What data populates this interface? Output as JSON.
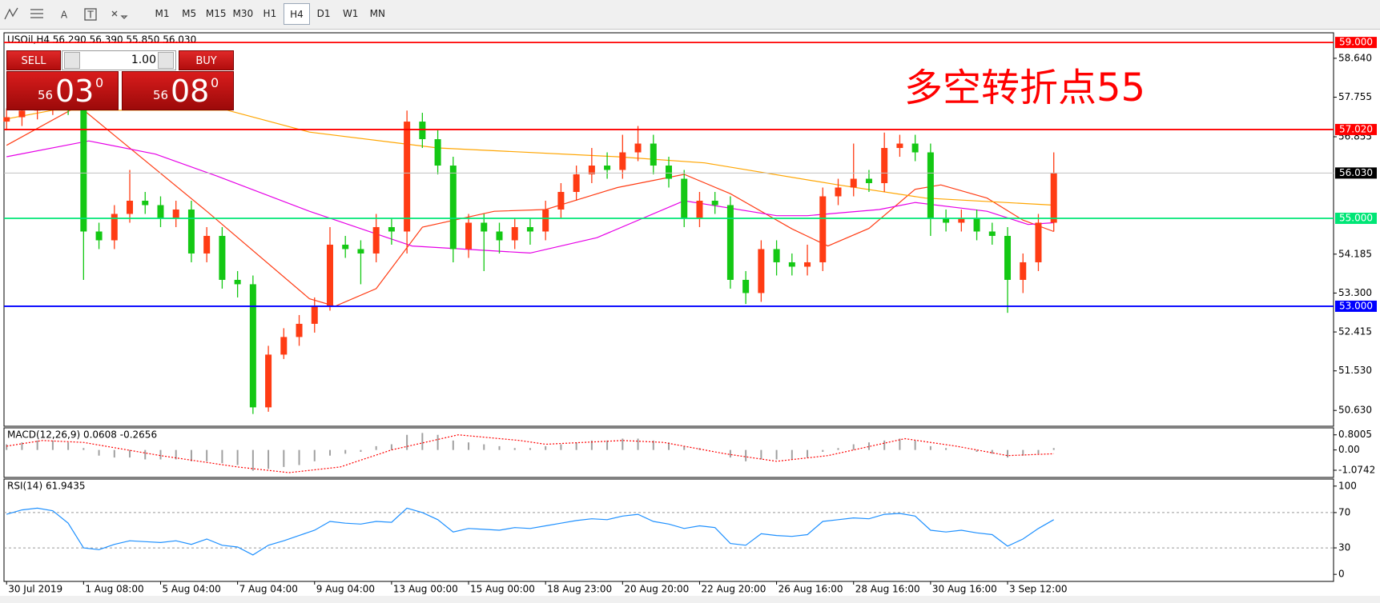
{
  "toolbar": {
    "text_tool": "A",
    "label_tool": "T",
    "timeframes": [
      "M1",
      "M5",
      "M15",
      "M30",
      "H1",
      "H4",
      "D1",
      "W1",
      "MN"
    ],
    "active_index": 5
  },
  "trade_panel": {
    "sell": "SELL",
    "buy": "BUY",
    "lot": "1.00",
    "bid": {
      "small": "56",
      "main": "03",
      "sup": "0"
    },
    "ask": {
      "small": "56",
      "main": "08",
      "sup": "0"
    }
  },
  "chart_data": [
    {
      "type": "candlestick",
      "header": "USOil,H4  56.290 56.390 55.850 56.030",
      "annotation": "多空转折点55",
      "up_color": "#ff3c14",
      "down_color": "#14c814",
      "xlim": [
        -0.5,
        258.5
      ],
      "ylim": [
        50.27,
        59.22
      ],
      "yticks": [
        {
          "value": 58.64,
          "label": "58.640"
        },
        {
          "value": 57.755,
          "label": "57.755"
        },
        {
          "value": 56.855,
          "label": "56.855"
        },
        {
          "value": 54.185,
          "label": "54.185"
        },
        {
          "value": 53.3,
          "label": "53.300"
        },
        {
          "value": 52.415,
          "label": "52.415"
        },
        {
          "value": 51.53,
          "label": "51.530"
        },
        {
          "value": 50.63,
          "label": "50.630"
        }
      ],
      "x": [
        0,
        3,
        6,
        9,
        12,
        15,
        18,
        21,
        24,
        27,
        30,
        33,
        36,
        39,
        42,
        45,
        48,
        51,
        54,
        57,
        60,
        63,
        66,
        69,
        72,
        75,
        78,
        81,
        84,
        87,
        90,
        93,
        96,
        99,
        102,
        105,
        108,
        111,
        114,
        117,
        120,
        123,
        126,
        129,
        132,
        135,
        138,
        141,
        144,
        147,
        150,
        153,
        156,
        159,
        162,
        165,
        168,
        171,
        174,
        177,
        180,
        183,
        186,
        189,
        192,
        195,
        198,
        201,
        204
      ],
      "open": [
        57.2,
        57.3,
        57.45,
        57.55,
        57.6,
        57.55,
        54.7,
        54.5,
        55.1,
        55.4,
        55.3,
        55.0,
        55.2,
        54.2,
        54.6,
        53.6,
        53.5,
        50.7,
        51.9,
        52.3,
        52.6,
        53.0,
        54.4,
        54.3,
        54.2,
        54.8,
        54.7,
        57.2,
        56.8,
        56.2,
        54.3,
        54.9,
        54.7,
        54.5,
        54.8,
        54.7,
        55.2,
        55.6,
        56.0,
        56.2,
        56.1,
        56.5,
        56.7,
        56.2,
        55.9,
        55.0,
        55.4,
        55.3,
        53.6,
        53.3,
        54.3,
        54.0,
        53.9,
        54.0,
        55.5,
        55.7,
        55.9,
        55.8,
        56.6,
        56.7,
        56.5,
        55.0,
        54.9,
        55.0,
        54.7,
        54.6,
        53.6,
        54.0,
        54.9
      ],
      "high": [
        57.5,
        57.65,
        57.75,
        57.8,
        57.8,
        57.75,
        54.9,
        55.3,
        56.1,
        55.6,
        55.5,
        55.4,
        55.4,
        54.8,
        54.8,
        53.8,
        53.7,
        52.1,
        52.5,
        52.8,
        53.2,
        54.8,
        54.6,
        54.5,
        55.1,
        55.0,
        57.45,
        57.4,
        57.0,
        56.4,
        55.1,
        55.1,
        54.9,
        55.0,
        55.0,
        55.4,
        55.8,
        56.2,
        56.6,
        56.5,
        56.9,
        57.1,
        56.9,
        56.4,
        56.1,
        55.6,
        55.6,
        55.5,
        53.8,
        54.5,
        54.5,
        54.2,
        54.4,
        55.7,
        55.9,
        56.7,
        56.1,
        56.95,
        56.9,
        56.9,
        56.7,
        55.2,
        55.2,
        55.2,
        54.9,
        54.8,
        54.2,
        55.1,
        56.5
      ],
      "low": [
        57.0,
        57.1,
        57.25,
        57.35,
        57.35,
        53.6,
        54.3,
        54.3,
        54.9,
        55.1,
        54.8,
        54.8,
        54.0,
        54.0,
        53.4,
        53.2,
        50.55,
        50.6,
        51.8,
        52.1,
        52.4,
        52.9,
        54.1,
        53.5,
        54.0,
        54.4,
        54.2,
        56.6,
        56.0,
        54.0,
        54.1,
        53.8,
        54.2,
        54.3,
        54.4,
        54.5,
        55.0,
        55.4,
        55.8,
        55.9,
        55.9,
        56.3,
        56.0,
        55.7,
        54.8,
        54.8,
        55.1,
        53.4,
        53.05,
        53.1,
        53.7,
        53.7,
        53.7,
        53.8,
        55.3,
        55.5,
        55.6,
        55.6,
        56.4,
        56.3,
        54.6,
        54.7,
        54.7,
        54.5,
        54.4,
        52.85,
        53.3,
        53.8,
        54.7
      ],
      "close": [
        57.3,
        57.45,
        57.55,
        57.6,
        57.55,
        54.7,
        54.5,
        55.1,
        55.4,
        55.3,
        55.0,
        55.2,
        54.2,
        54.6,
        53.6,
        53.5,
        50.7,
        51.9,
        52.3,
        52.6,
        53.0,
        54.4,
        54.3,
        54.2,
        54.8,
        54.7,
        57.2,
        56.8,
        56.2,
        54.3,
        54.9,
        54.7,
        54.5,
        54.8,
        54.7,
        55.2,
        55.6,
        56.0,
        56.2,
        56.1,
        56.5,
        56.7,
        56.2,
        55.9,
        55.0,
        55.4,
        55.3,
        53.6,
        53.3,
        54.3,
        54.0,
        53.9,
        54.0,
        55.5,
        55.7,
        55.9,
        55.8,
        56.6,
        56.7,
        56.5,
        55.0,
        54.9,
        55.0,
        54.7,
        54.6,
        53.6,
        54.0,
        54.9,
        56.03
      ],
      "moving_averages": [
        {
          "color": "#ff3c14",
          "x": [
            0,
            14,
            39,
            59,
            64,
            72,
            81,
            95,
            105,
            119,
            132,
            141,
            153,
            160,
            168,
            177,
            182,
            191,
            198,
            204
          ],
          "values": [
            56.66,
            57.56,
            55.16,
            53.17,
            53.0,
            53.4,
            54.8,
            55.16,
            55.2,
            55.7,
            56.0,
            55.56,
            54.76,
            54.37,
            54.77,
            55.66,
            55.76,
            55.46,
            54.96,
            54.7
          ]
        },
        {
          "color": "#e600e6",
          "x": [
            0,
            16,
            29,
            41,
            59,
            79,
            102,
            115,
            132,
            150,
            156,
            170,
            177,
            191,
            199,
            204
          ],
          "values": [
            56.4,
            56.76,
            56.46,
            55.96,
            55.16,
            54.37,
            54.21,
            54.56,
            55.4,
            55.06,
            55.06,
            55.2,
            55.36,
            55.16,
            54.86,
            54.9
          ]
        },
        {
          "color": "#ffa500",
          "x": [
            0,
            9,
            43,
            59,
            84,
            119,
            136,
            162,
            179,
            204
          ],
          "values": [
            57.26,
            57.46,
            57.46,
            56.96,
            56.6,
            56.4,
            56.26,
            55.76,
            55.46,
            55.3
          ]
        }
      ],
      "levels": [
        {
          "value": 59.0,
          "label": "59.000",
          "color": "#ff0000"
        },
        {
          "value": 57.02,
          "label": "57.020",
          "color": "#ff0000"
        },
        {
          "value": 55.0,
          "label": "55.000",
          "color": "#00e676"
        },
        {
          "value": 53.0,
          "label": "53.000",
          "color": "#0000ff"
        }
      ],
      "current": {
        "value": 56.03,
        "label": "56.030"
      }
    },
    {
      "type": "macd",
      "header": "MACD(12,26,9) 0.0608 -0.2656",
      "xlim": [
        -0.5,
        258.5
      ],
      "ylim": [
        -1.455,
        1.17
      ],
      "yticks": [
        0.8005,
        {
          "value": 0,
          "label": "0.00"
        },
        -1.0742
      ],
      "histogram_color": "#a0a0a0",
      "signal_color": "#ff0000",
      "histogram": [
        0.3,
        0.4,
        0.5,
        0.5,
        0.4,
        0.1,
        -0.3,
        -0.4,
        -0.4,
        -0.5,
        -0.5,
        -0.5,
        -0.6,
        -0.6,
        -0.7,
        -0.8,
        -1.1,
        -1.0,
        -0.9,
        -0.8,
        -0.6,
        -0.3,
        -0.2,
        -0.1,
        0.2,
        0.3,
        0.8,
        0.9,
        0.8,
        0.5,
        0.4,
        0.3,
        0.2,
        0.1,
        0.1,
        0.2,
        0.3,
        0.4,
        0.5,
        0.5,
        0.6,
        0.6,
        0.5,
        0.4,
        0.2,
        0.1,
        0.0,
        -0.4,
        -0.6,
        -0.5,
        -0.5,
        -0.5,
        -0.4,
        -0.1,
        0.1,
        0.3,
        0.4,
        0.5,
        0.6,
        0.5,
        0.2,
        0.1,
        0.0,
        -0.1,
        -0.2,
        -0.4,
        -0.3,
        -0.2,
        0.1
      ],
      "signal": {
        "x": [
          0,
          7,
          15,
          30,
          45,
          55,
          65,
          75,
          88,
          100,
          105,
          120,
          128,
          140,
          150,
          160,
          175,
          185,
          195,
          204
        ],
        "values": [
          0.2,
          0.5,
          0.4,
          -0.3,
          -0.9,
          -1.2,
          -0.9,
          0.0,
          0.8,
          0.5,
          0.3,
          0.5,
          0.4,
          -0.2,
          -0.6,
          -0.3,
          0.6,
          0.2,
          -0.3,
          -0.2
        ]
      }
    },
    {
      "type": "rsi",
      "header": "RSI(14) 61.9435",
      "xlim": [
        -0.5,
        258.5
      ],
      "ylim": [
        -8,
        108
      ],
      "yticks": [
        100,
        70,
        30,
        0
      ],
      "levels": [
        70,
        30
      ],
      "color": "#1e90ff",
      "values": [
        68,
        73,
        75,
        72,
        58,
        30,
        28,
        34,
        38,
        37,
        36,
        38,
        34,
        40,
        33,
        31,
        22,
        33,
        38,
        44,
        50,
        60,
        58,
        57,
        60,
        59,
        75,
        70,
        62,
        48,
        52,
        51,
        50,
        53,
        52,
        55,
        58,
        61,
        63,
        62,
        66,
        68,
        60,
        57,
        52,
        55,
        53,
        35,
        33,
        46,
        44,
        43,
        45,
        60,
        62,
        64,
        63,
        68,
        69,
        66,
        50,
        48,
        50,
        47,
        45,
        32,
        40,
        52,
        62
      ],
      "xticks": [
        {
          "value": 0,
          "label": "30 Jul 2019"
        },
        {
          "value": 15,
          "label": "1 Aug 08:00"
        },
        {
          "value": 30,
          "label": "5 Aug 04:00"
        },
        {
          "value": 45,
          "label": "7 Aug 04:00"
        },
        {
          "value": 60,
          "label": "9 Aug 04:00"
        },
        {
          "value": 75,
          "label": "13 Aug 00:00"
        },
        {
          "value": 90,
          "label": "15 Aug 00:00"
        },
        {
          "value": 105,
          "label": "18 Aug 23:00"
        },
        {
          "value": 120,
          "label": "20 Aug 20:00"
        },
        {
          "value": 135,
          "label": "22 Aug 20:00"
        },
        {
          "value": 150,
          "label": "26 Aug 16:00"
        },
        {
          "value": 165,
          "label": "28 Aug 16:00"
        },
        {
          "value": 180,
          "label": "30 Aug 16:00"
        },
        {
          "value": 195,
          "label": "3 Sep 12:00"
        }
      ]
    }
  ]
}
